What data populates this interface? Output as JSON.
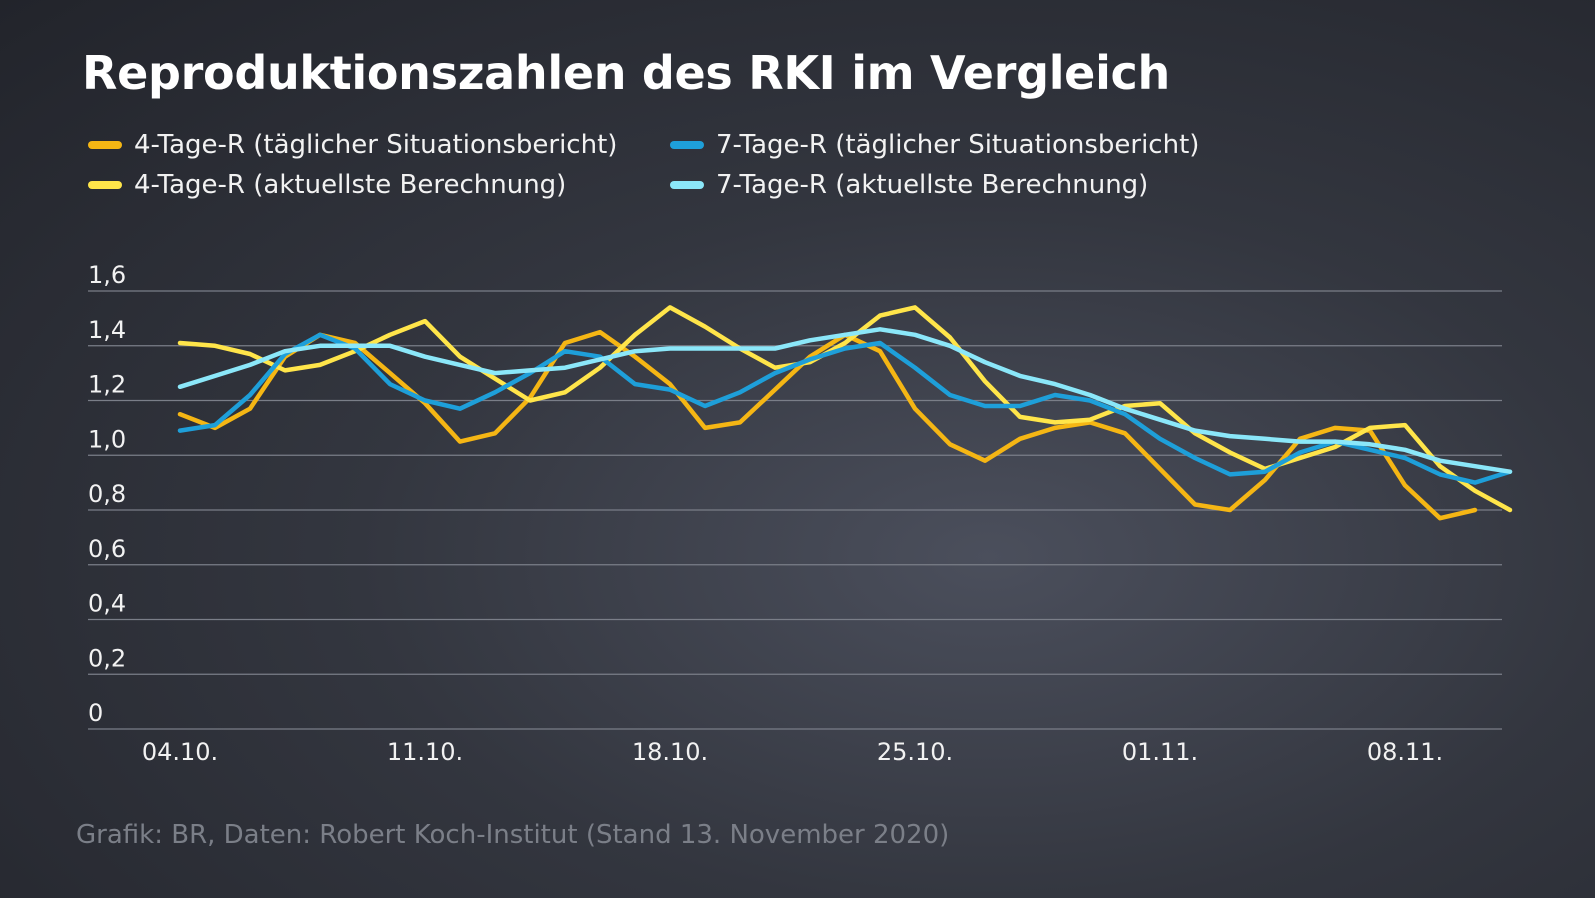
{
  "title": "Reproduktionszahlen des RKI im Vergleich",
  "source": "Grafik: BR, Daten: Robert Koch-Institut (Stand 13. November 2020)",
  "chart_data": {
    "type": "line",
    "title": "Reproduktionszahlen des RKI im Vergleich",
    "ylim": [
      0,
      1.6
    ],
    "y_ticks": [
      0,
      0.2,
      0.4,
      0.6,
      0.8,
      1.0,
      1.2,
      1.4,
      1.6
    ],
    "y_tick_labels": [
      "0",
      "0,2",
      "0,4",
      "0,6",
      "0,8",
      "1,0",
      "1,2",
      "1,4",
      "1,6"
    ],
    "x_start": "04.10.",
    "x_ticks": [
      {
        "day": 0,
        "label": "04.10."
      },
      {
        "day": 7,
        "label": "11.10."
      },
      {
        "day": 14,
        "label": "18.10."
      },
      {
        "day": 21,
        "label": "25.10."
      },
      {
        "day": 28,
        "label": "01.11."
      },
      {
        "day": 35,
        "label": "08.11."
      }
    ],
    "grid": true,
    "legend_position": "top",
    "series": [
      {
        "name": "4-Tage-R (täglicher Situationsbericht)",
        "color": "#f5b614",
        "values": [
          1.15,
          1.1,
          1.17,
          1.36,
          1.44,
          1.41,
          1.3,
          1.19,
          1.05,
          1.08,
          1.21,
          1.41,
          1.45,
          1.36,
          1.26,
          1.1,
          1.12,
          1.24,
          1.36,
          1.44,
          1.38,
          1.17,
          1.04,
          0.98,
          1.06,
          1.1,
          1.12,
          1.08,
          0.95,
          0.82,
          0.8,
          0.91,
          1.06,
          1.1,
          1.09,
          0.89,
          0.77,
          0.8
        ]
      },
      {
        "name": "4-Tage-R (aktuellste Berechnung)",
        "color": "#ffe54a",
        "values": [
          1.41,
          1.4,
          1.37,
          1.31,
          1.33,
          1.38,
          1.44,
          1.49,
          1.36,
          1.28,
          1.2,
          1.23,
          1.32,
          1.44,
          1.54,
          1.47,
          1.39,
          1.32,
          1.34,
          1.41,
          1.51,
          1.54,
          1.43,
          1.27,
          1.14,
          1.12,
          1.13,
          1.18,
          1.19,
          1.08,
          1.01,
          0.95,
          0.99,
          1.03,
          1.1,
          1.11,
          0.96,
          0.87,
          0.8
        ]
      },
      {
        "name": "7-Tage-R (täglicher  Situationsbericht)",
        "color": "#1e9fd9",
        "values": [
          1.09,
          1.11,
          1.22,
          1.37,
          1.44,
          1.39,
          1.26,
          1.2,
          1.17,
          1.23,
          1.3,
          1.38,
          1.36,
          1.26,
          1.24,
          1.18,
          1.23,
          1.3,
          1.35,
          1.39,
          1.41,
          1.32,
          1.22,
          1.18,
          1.18,
          1.22,
          1.2,
          1.15,
          1.06,
          0.99,
          0.93,
          0.94,
          1.01,
          1.05,
          1.02,
          0.99,
          0.93,
          0.9,
          0.94
        ]
      },
      {
        "name": "7-Tage-R (aktuellste Berechnung)",
        "color": "#8be7f9",
        "values": [
          1.25,
          1.29,
          1.33,
          1.38,
          1.4,
          1.4,
          1.4,
          1.36,
          1.33,
          1.3,
          1.31,
          1.32,
          1.35,
          1.38,
          1.39,
          1.39,
          1.39,
          1.39,
          1.42,
          1.44,
          1.46,
          1.44,
          1.4,
          1.34,
          1.29,
          1.26,
          1.22,
          1.17,
          1.13,
          1.09,
          1.07,
          1.06,
          1.05,
          1.05,
          1.04,
          1.02,
          0.98,
          0.96,
          0.94
        ]
      }
    ]
  },
  "legend": [
    {
      "label": "4-Tage-R (täglicher Situationsbericht)",
      "color": "#f5b614"
    },
    {
      "label": "4-Tage-R (aktuellste Berechnung)",
      "color": "#ffe54a"
    },
    {
      "label": "7-Tage-R (täglicher  Situationsbericht)",
      "color": "#1e9fd9"
    },
    {
      "label": "7-Tage-R (aktuellste Berechnung)",
      "color": "#8be7f9"
    }
  ]
}
